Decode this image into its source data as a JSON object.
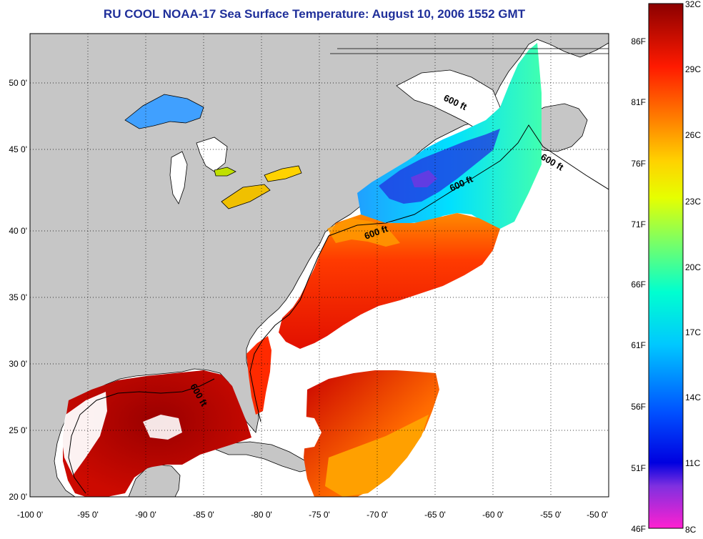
{
  "title": "RU COOL  NOAA-17  Sea Surface Temperature:  August 10, 2006 1552 GMT",
  "map": {
    "lon_range": [
      -100,
      -50
    ],
    "lat_range": [
      20,
      52.5
    ],
    "x_ticks": [
      "-100 0'",
      "-95 0'",
      "-90 0'",
      "-85 0'",
      "-80 0'",
      "-75 0'",
      "-70 0'",
      "-65 0'",
      "-60 0'",
      "-55 0'",
      "-50 0'"
    ],
    "y_ticks": [
      "20 0'",
      "25 0'",
      "30 0'",
      "35 0'",
      "40 0'",
      "45 0'",
      "50 0'"
    ],
    "grid": "dotted",
    "contour_label": "600 ft",
    "colors": {
      "land": "#c6c6c6",
      "no_data": "#ffffff",
      "coast": "#000000"
    }
  },
  "colorbar": {
    "celsius": [
      "32C",
      "29C",
      "26C",
      "23C",
      "20C",
      "17C",
      "14C",
      "11C",
      "8C"
    ],
    "fahrenheit": [
      "86F",
      "81F",
      "76F",
      "71F",
      "66F",
      "61F",
      "56F",
      "51F",
      "46F"
    ],
    "colors": [
      "#8b0000",
      "#ff1a00",
      "#ff7f00",
      "#ffd200",
      "#e6ff00",
      "#80ff60",
      "#00ffd0",
      "#00c8ff",
      "#0050ff",
      "#0000e0",
      "#8030e0",
      "#ff20d0"
    ]
  }
}
